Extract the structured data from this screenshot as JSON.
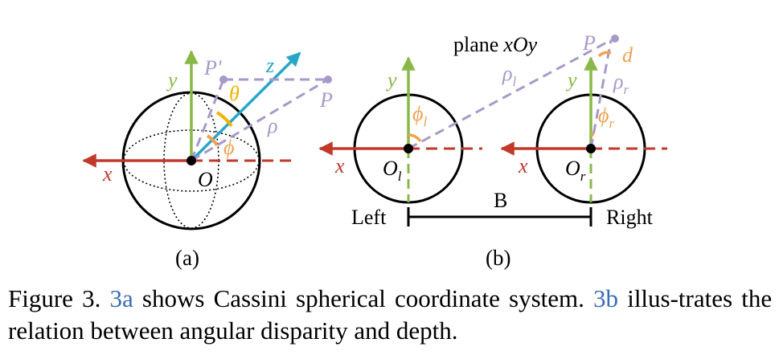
{
  "colors": {
    "x_axis": "#c0392b",
    "y_axis": "#8ab848",
    "z_axis": "#29a6c6",
    "point_lines": "#a899c8",
    "angle_theta": "#f2b200",
    "angle_phi": "#f0a050",
    "ref_link": "#3a6db3"
  },
  "panel_a": {
    "label": "(a)",
    "x_label": "x",
    "y_label": "y",
    "z_label": "z",
    "origin_label": "O",
    "point_label": "P",
    "projection_label": "P'",
    "theta_label": "θ",
    "phi_label": "ϕ",
    "rho_label": "ρ"
  },
  "panel_b": {
    "label": "(b)",
    "plane_label": "plane",
    "plane_name": "xOy",
    "point_label": "P",
    "d_label": "d",
    "rho_l": {
      "base": "ρ",
      "sub": "l"
    },
    "rho_r": {
      "base": "ρ",
      "sub": "r"
    },
    "phi_l": {
      "base": "ϕ",
      "sub": "l"
    },
    "phi_r": {
      "base": "ϕ",
      "sub": "r"
    },
    "origin_l": {
      "base": "O",
      "sub": "l"
    },
    "origin_r": {
      "base": "O",
      "sub": "r"
    },
    "x_label_left": "x",
    "x_label_right": "x",
    "y_label_left": "y",
    "y_label_right": "y",
    "baseline_label": "B",
    "left_label": "Left",
    "right_label": "Right"
  },
  "caption": {
    "prefix": "Figure 3.",
    "ref_a": "3a",
    "text_a": "shows Cassini spherical coordinate system.",
    "ref_b": "3b",
    "text_b": "illus-trates the relation between angular disparity and depth."
  }
}
